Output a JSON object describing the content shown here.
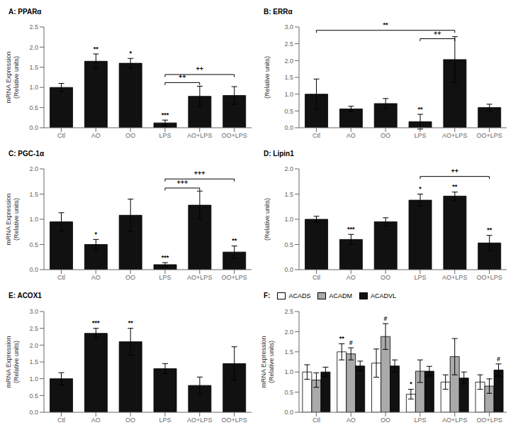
{
  "chart_data": [
    {
      "type": "bar",
      "title": "A: PPARα",
      "categories": [
        "Ctl",
        "AO",
        "OO",
        "LPS",
        "AO+LPS",
        "OO+LPS"
      ],
      "values": [
        1.0,
        1.65,
        1.6,
        0.12,
        0.78,
        0.8
      ],
      "errors": [
        0.1,
        0.18,
        0.12,
        0.07,
        0.25,
        0.22
      ],
      "color": "#111111",
      "ylim": [
        0,
        2.5
      ],
      "yticks": [
        {
          "value": 0,
          "label": "0.0"
        },
        0.5,
        {
          "value": 1.0,
          "label": "1.0"
        },
        1.5,
        {
          "value": 2.0,
          "label": "2.0"
        },
        2.5
      ],
      "ylabel": "mRNA Expression\n(Relative units)",
      "annotations": [
        {
          "category": "AO",
          "label": "**"
        },
        {
          "category": "OO",
          "label": "*"
        },
        {
          "category": "LPS",
          "label": "***"
        }
      ],
      "brackets": [
        {
          "from": "LPS",
          "to": "AO+LPS",
          "y": 1.12,
          "label": "++"
        },
        {
          "from": "LPS",
          "to": "OO+LPS",
          "y": 1.32,
          "label": "++"
        }
      ]
    },
    {
      "type": "bar",
      "title": "B: ERRα",
      "categories": [
        "Ctl",
        "AO",
        "OO",
        "LPS",
        "AO+LPS",
        "OO+LPS"
      ],
      "values": [
        1.0,
        0.56,
        0.72,
        0.18,
        2.03,
        0.6
      ],
      "errors": [
        0.45,
        0.08,
        0.15,
        0.22,
        0.68,
        0.1
      ],
      "color": "#111111",
      "ylim": [
        0,
        3.0
      ],
      "yticks": [
        {
          "value": 0,
          "label": "0.0"
        },
        0.5,
        {
          "value": 1.0,
          "label": "1.0"
        },
        1.5,
        {
          "value": 2.0,
          "label": "2.0"
        },
        2.5,
        {
          "value": 3.0,
          "label": "3.0"
        }
      ],
      "ylabel": "(Relative units)",
      "annotations": [
        {
          "category": "LPS",
          "label": "**"
        }
      ],
      "brackets": [
        {
          "from": "Ctl",
          "to": "AO+LPS",
          "y": 2.9,
          "label": "**"
        },
        {
          "from": "LPS",
          "to": "AO+LPS",
          "y": 2.65,
          "label": "++"
        }
      ]
    },
    {
      "type": "bar",
      "title": "C: PGC-1α",
      "categories": [
        "Ctl",
        "AO",
        "OO",
        "LPS",
        "AO+LPS",
        "OO+LPS"
      ],
      "values": [
        0.95,
        0.5,
        1.08,
        0.1,
        1.28,
        0.35
      ],
      "errors": [
        0.18,
        0.1,
        0.32,
        0.04,
        0.28,
        0.12
      ],
      "color": "#111111",
      "ylim": [
        0,
        2.0
      ],
      "yticks": [
        {
          "value": 0,
          "label": "0.0"
        },
        0.5,
        {
          "value": 1.0,
          "label": "1.0"
        },
        1.5,
        {
          "value": 2.0,
          "label": "2.0"
        }
      ],
      "ylabel": "mRNA Expression\n(Relative units)",
      "annotations": [
        {
          "category": "AO",
          "label": "*"
        },
        {
          "category": "LPS",
          "label": "***"
        },
        {
          "category": "OO+LPS",
          "label": "**"
        }
      ],
      "brackets": [
        {
          "from": "LPS",
          "to": "AO+LPS",
          "y": 1.62,
          "label": "+++"
        },
        {
          "from": "LPS",
          "to": "OO+LPS",
          "y": 1.8,
          "label": "+++"
        }
      ]
    },
    {
      "type": "bar",
      "title": "D: Lipin1",
      "categories": [
        "Ctl",
        "AO",
        "OO",
        "LPS",
        "AO+LPS",
        "OO+LPS"
      ],
      "values": [
        1.0,
        0.6,
        0.95,
        1.38,
        1.46,
        0.53
      ],
      "errors": [
        0.06,
        0.1,
        0.08,
        0.12,
        0.08,
        0.15
      ],
      "color": "#111111",
      "ylim": [
        0,
        2.0
      ],
      "yticks": [
        {
          "value": 0,
          "label": "0.0"
        },
        0.5,
        {
          "value": 1.0,
          "label": "1.0"
        },
        1.5,
        {
          "value": 2.0,
          "label": "2.0"
        }
      ],
      "ylabel": "(Relative units)",
      "annotations": [
        {
          "category": "AO",
          "label": "***"
        },
        {
          "category": "LPS",
          "label": "*"
        },
        {
          "category": "AO+LPS",
          "label": "**"
        },
        {
          "category": "OO+LPS",
          "label": "**"
        }
      ],
      "brackets": [
        {
          "from": "LPS",
          "to": "OO+LPS",
          "y": 1.85,
          "label": "++"
        }
      ]
    },
    {
      "type": "bar",
      "title": "E: ACOX1",
      "categories": [
        "Ctl",
        "AO",
        "OO",
        "LPS",
        "AO+LPS",
        "OO+LPS"
      ],
      "values": [
        1.0,
        2.35,
        2.1,
        1.3,
        0.8,
        1.45
      ],
      "errors": [
        0.18,
        0.15,
        0.4,
        0.15,
        0.25,
        0.5
      ],
      "color": "#111111",
      "ylim": [
        0,
        3.0
      ],
      "yticks": [
        {
          "value": 0,
          "label": "0.0"
        },
        0.5,
        {
          "value": 1.0,
          "label": "1.0"
        },
        1.5,
        {
          "value": 2.0,
          "label": "2.0"
        },
        2.5,
        {
          "value": 3.0,
          "label": "3.0"
        }
      ],
      "ylabel": "mRNA Expression\n(Relative units)",
      "annotations": [
        {
          "category": "AO",
          "label": "***"
        },
        {
          "category": "OO",
          "label": "**"
        }
      ],
      "brackets": []
    },
    {
      "type": "bar",
      "title": "F:",
      "categories": [
        "Ctl",
        "AO",
        "OO",
        "LPS",
        "AO+LPS",
        "OO+LPS"
      ],
      "series": [
        {
          "name": "ACADS",
          "color": "#ffffff",
          "values": [
            1.0,
            1.5,
            1.22,
            0.45,
            0.75,
            0.75
          ],
          "errors": [
            0.18,
            0.2,
            0.35,
            0.12,
            0.18,
            0.18
          ]
        },
        {
          "name": "ACADM",
          "color": "#aaaaaa",
          "values": [
            0.8,
            1.45,
            1.88,
            1.02,
            1.38,
            0.65
          ],
          "errors": [
            0.18,
            0.15,
            0.32,
            0.28,
            0.45,
            0.18
          ]
        },
        {
          "name": "ACADVL",
          "color": "#111111",
          "values": [
            1.0,
            1.15,
            1.15,
            1.02,
            0.85,
            1.05
          ],
          "errors": [
            0.12,
            0.12,
            0.15,
            0.12,
            0.15,
            0.15
          ]
        }
      ],
      "ylim": [
        0,
        2.5
      ],
      "yticks": [
        {
          "value": 0,
          "label": "0.0"
        },
        0.5,
        {
          "value": 1.0,
          "label": "1.0"
        },
        1.5,
        {
          "value": 2.0,
          "label": "2.0"
        },
        2.5
      ],
      "ylabel": "mRNA Expression\n(Relative units)",
      "legend": "upper left",
      "annotations": [
        {
          "category": "AO",
          "series": "ACADS",
          "label": "**"
        },
        {
          "category": "AO",
          "series": "ACADM",
          "label": "#"
        },
        {
          "category": "OO",
          "series": "ACADM",
          "label": "#"
        },
        {
          "category": "LPS",
          "series": "ACADS",
          "label": "*"
        },
        {
          "category": "OO+LPS",
          "series": "ACADVL",
          "label": "#"
        }
      ]
    }
  ]
}
